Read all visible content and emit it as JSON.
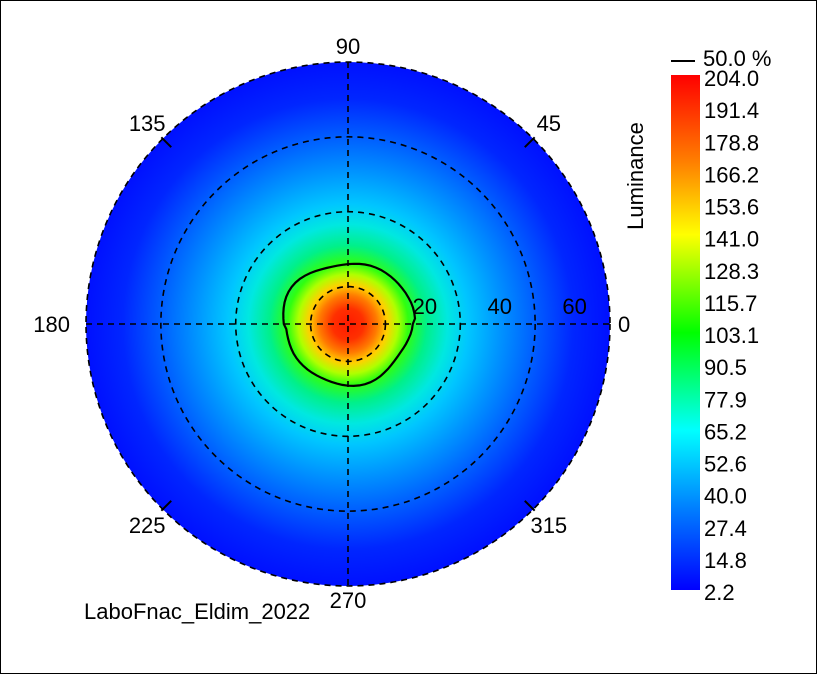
{
  "chart_data": {
    "type": "heatmap",
    "subtype": "polar",
    "color_bar": {
      "label": "Luminance",
      "contour_label": "50.0 %",
      "values": [
        "204.0",
        "191.4",
        "178.8",
        "166.2",
        "153.6",
        "141.0",
        "128.3",
        "115.7",
        "103.1",
        "90.5",
        "77.9",
        "65.2",
        "52.6",
        "40.0",
        "27.4",
        "14.8",
        "2.2"
      ],
      "min": 2.2,
      "max": 204.0,
      "colormap": [
        "#ff0000",
        "#ff8000",
        "#ffff00",
        "#00ff00",
        "#00ffff",
        "#0080ff",
        "#0000ff"
      ]
    },
    "azimuth_labels": [
      "90",
      "45",
      "0",
      "315",
      "270",
      "225",
      "180",
      "135"
    ],
    "radial_labels": [
      "20",
      "40",
      "60"
    ],
    "radial_grid": [
      10,
      30,
      50,
      70
    ],
    "radial_max": 70,
    "grid": true,
    "contour_level": 102,
    "footer": "LaboFnac_Eldim_2022"
  },
  "colors": {
    "grid": "#000000",
    "background": "#ffffff"
  }
}
